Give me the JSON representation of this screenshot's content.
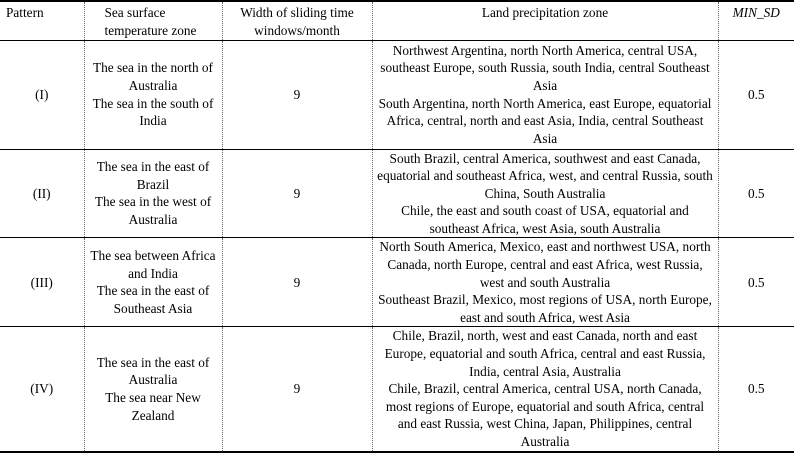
{
  "table": {
    "headers": {
      "pattern": "Pattern",
      "sst_zone_line1": "Sea surface",
      "sst_zone_line2": "temperature zone",
      "window_line1": "Width of sliding time",
      "window_line2": "windows/month",
      "land_zone": "Land precipitation zone",
      "min_sd": "MIN_SD"
    },
    "rows": [
      {
        "pattern": "(I)",
        "sst_a": "The sea in the north of Australia",
        "sst_b": "The sea in the south of India",
        "window": "9",
        "land_a": "Northwest Argentina, north North America, central USA, southeast Europe, south Russia, south India, central Southeast Asia",
        "land_b": "South Argentina, north North America, east Europe, equatorial Africa, central, north and east Asia, India, central Southeast Asia",
        "min_sd": "0.5"
      },
      {
        "pattern": "(II)",
        "sst_a": "The sea in the east of Brazil",
        "sst_b": "The sea in the west of Australia",
        "window": "9",
        "land_a": "South Brazil, central America, southwest and east Canada, equatorial and southeast Africa, west, and central Russia, south China, South Australia",
        "land_b": "Chile, the east and south coast of USA, equatorial and southeast Africa, west Asia, south Australia",
        "min_sd": "0.5"
      },
      {
        "pattern": "(III)",
        "sst_a": "The sea between Africa and India",
        "sst_b": "The sea in the east of Southeast Asia",
        "window": "9",
        "land_a": "North South America, Mexico, east and northwest USA, north Canada, north Europe, central and east Africa, west Russia, west and south Australia",
        "land_b": "Southeast Brazil, Mexico, most regions of USA, north Europe, east and south Africa, west Asia",
        "min_sd": "0.5"
      },
      {
        "pattern": "(IV)",
        "sst_a": "The sea in the east of Australia",
        "sst_b": "The sea near New Zealand",
        "window": "9",
        "land_a": "Chile, Brazil, north, west and east Canada, north and east Europe, equatorial and south Africa, central and east Russia, India, central Asia, Australia",
        "land_b": "Chile, Brazil, central America, central USA, north Canada, most regions of Europe, equatorial and south Africa, central and east Russia, west China, Japan, Philippines, central Australia",
        "min_sd": "0.5"
      }
    ]
  }
}
